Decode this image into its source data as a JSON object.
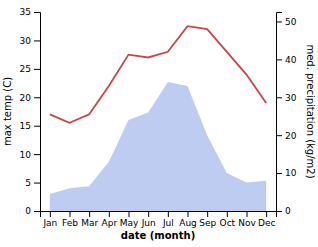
{
  "chart_data": {
    "type": "line",
    "x_label": "date (month)",
    "y_label": "max temp (C)",
    "y2_label": "med. precipitation (kg/m2)",
    "categories": [
      "Jan",
      "Feb",
      "Mar",
      "Apr",
      "May",
      "Jun",
      "Jul",
      "Aug",
      "Sep",
      "Oct",
      "Nov",
      "Dec"
    ],
    "series": [
      {
        "type": "line",
        "color": "#cc4444",
        "values": [
          17,
          15.5,
          17,
          22,
          27.5,
          27,
          28,
          32.5,
          32,
          28,
          24,
          19
        ]
      },
      {
        "type": "area",
        "color": "#aabbee",
        "axis": "y2",
        "values": [
          4.5,
          6,
          6.5,
          13,
          24,
          26,
          34,
          33,
          20,
          10,
          7.5,
          8
        ]
      }
    ],
    "ylim": [
      0,
      35
    ],
    "yticks": [
      0,
      5,
      10,
      15,
      20,
      25,
      30,
      35
    ],
    "y2lim": [
      0,
      52.5
    ],
    "y2ticks": [
      0,
      10,
      20,
      30,
      40,
      50
    ],
    "grid": false
  }
}
